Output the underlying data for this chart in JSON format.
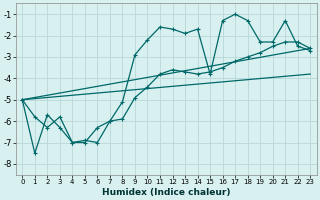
{
  "xlabel": "Humidex (Indice chaleur)",
  "background_color": "#d8f0f0",
  "grid_color": "#b8d8d8",
  "line_color": "#006868",
  "xlim": [
    -0.5,
    23.5
  ],
  "ylim": [
    -8.5,
    -0.5
  ],
  "yticks": [
    -8,
    -7,
    -6,
    -5,
    -4,
    -3,
    -2,
    -1
  ],
  "xticks": [
    0,
    1,
    2,
    3,
    4,
    5,
    6,
    7,
    8,
    9,
    10,
    11,
    12,
    13,
    14,
    15,
    16,
    17,
    18,
    19,
    20,
    21,
    22,
    23
  ],
  "series1_x": [
    0,
    1,
    2,
    3,
    4,
    5,
    6,
    7,
    8,
    9,
    10,
    11,
    12,
    13,
    14,
    15,
    16,
    17,
    18,
    19,
    20,
    21,
    22,
    23
  ],
  "series1_y": [
    -5.0,
    -5.8,
    -6.3,
    -5.8,
    -7.0,
    -7.0,
    -6.3,
    -6.0,
    -5.1,
    -2.9,
    -2.2,
    -1.6,
    -1.7,
    -1.9,
    -1.7,
    -3.8,
    -1.3,
    -1.0,
    -1.3,
    -2.3,
    -2.3,
    -1.3,
    -2.5,
    -2.7
  ],
  "series2_x": [
    0,
    1,
    2,
    3,
    4,
    5,
    6,
    7,
    8,
    9,
    10,
    11,
    12,
    13,
    14,
    15,
    16,
    17,
    18,
    19,
    20,
    21,
    22,
    23
  ],
  "series2_y": [
    -5.0,
    -7.5,
    -5.7,
    -6.3,
    -7.0,
    -6.9,
    -7.0,
    -6.0,
    -5.9,
    -4.9,
    -4.4,
    -3.8,
    -3.6,
    -3.7,
    -3.8,
    -3.7,
    -3.5,
    -3.2,
    -3.0,
    -2.8,
    -2.5,
    -2.3,
    -2.3,
    -2.6
  ],
  "series3_x": [
    0,
    23
  ],
  "series3_y": [
    -5.0,
    -2.6
  ],
  "series4_x": [
    0,
    23
  ],
  "series4_y": [
    -5.0,
    -3.8
  ]
}
